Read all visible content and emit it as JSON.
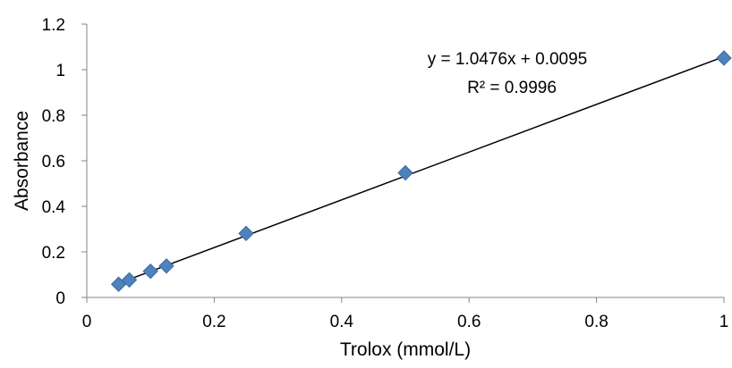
{
  "chart_data": {
    "type": "scatter",
    "xlabel": "Trolox (mmol/L)",
    "ylabel": "Absorbance",
    "xlim": [
      0,
      1
    ],
    "ylim": [
      0,
      1.2
    ],
    "x_ticks": [
      0,
      0.2,
      0.4,
      0.6,
      0.8,
      1
    ],
    "x_tick_labels": [
      "0",
      "0.2",
      "0.4",
      "0.6",
      "0.8",
      "1"
    ],
    "y_ticks": [
      0,
      0.2,
      0.4,
      0.6,
      0.8,
      1,
      1.2
    ],
    "y_tick_labels": [
      "0",
      "0.2",
      "0.4",
      "0.6",
      "0.8",
      "1",
      "1.2"
    ],
    "grid": false,
    "legend": "none",
    "marker_color": "#4f81bd",
    "trendline_color": "#000000",
    "series": [
      {
        "x": [
          0.05,
          0.0667,
          0.1,
          0.125,
          0.25,
          0.5,
          1
        ],
        "y": [
          0.058,
          0.077,
          0.115,
          0.138,
          0.281,
          0.547,
          1.051
        ]
      }
    ],
    "trendline": {
      "slope": 1.0476,
      "intercept": 0.0095,
      "x_range": [
        0.05,
        1
      ]
    },
    "annotations": {
      "equation": "y = 1.0476x + 0.0095",
      "r_squared": "R² = 0.9996"
    }
  }
}
